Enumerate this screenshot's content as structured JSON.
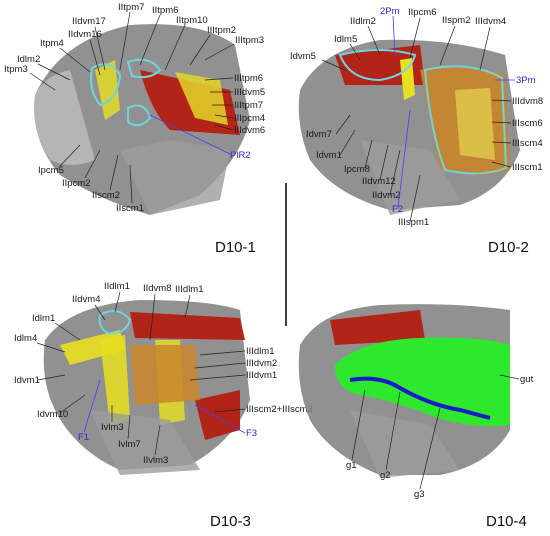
{
  "panels": [
    {
      "id": "D10-1",
      "title": "D10-1",
      "labels": [
        "IItpm7",
        "IItpm6",
        "IItpm10",
        "IIdvm17",
        "IIdvm16",
        "IIItpm2",
        "IIItpm3",
        "Itpm4",
        "Idlm2",
        "Itpm3",
        "IIItpm6",
        "IIIdvm5",
        "IIItpm7",
        "IIIpcm4",
        "IIIdvm6",
        "PlR2",
        "Ipcm5",
        "IIpcm2",
        "IIscm2",
        "IIscm1"
      ],
      "blue_labels": [
        "PlR2"
      ]
    },
    {
      "id": "D10-2",
      "title": "D10-2",
      "labels": [
        "2Pm",
        "IIdlm2",
        "IIpcm6",
        "IIspm2",
        "IIIdvm4",
        "Idlm5",
        "Idvm5",
        "3Pm",
        "IIIdvm8",
        "IIIscm6",
        "IIIscm4",
        "IIIscm1",
        "Idvm7",
        "Idvm1",
        "Ipcm8",
        "IIdvm12",
        "IIdvm2",
        "F2",
        "IIIspm1"
      ],
      "blue_labels": [
        "2Pm",
        "3Pm",
        "F2"
      ]
    },
    {
      "id": "D10-3",
      "title": "D10-3",
      "labels": [
        "IIdlm1",
        "IIdvm8",
        "IIIdlm1",
        "IIdvm4",
        "Idlm1",
        "Idlm4",
        "IIIdlm1",
        "IIIdvm2",
        "IIIdvm1",
        "Idvm1",
        "Idvm10",
        "F1",
        "Ivlm3",
        "Ivlm7",
        "IIvlm3",
        "IIIscm2+IIIscm3",
        "F3"
      ],
      "blue_labels": [
        "F1",
        "F3"
      ]
    },
    {
      "id": "D10-4",
      "title": "D10-4",
      "labels": [
        "gut",
        "g1",
        "g2",
        "g3"
      ],
      "blue_labels": []
    }
  ],
  "colors": {
    "cuticle": "#8a8a8a",
    "muscle_red": "#b32418",
    "muscle_yellow": "#e8e020",
    "outline_cyan": "#6fd3e0",
    "gut_green": "#2ee82e",
    "ganglia_blue": "#1a1acc",
    "label_blue": "#2b2bd8"
  }
}
